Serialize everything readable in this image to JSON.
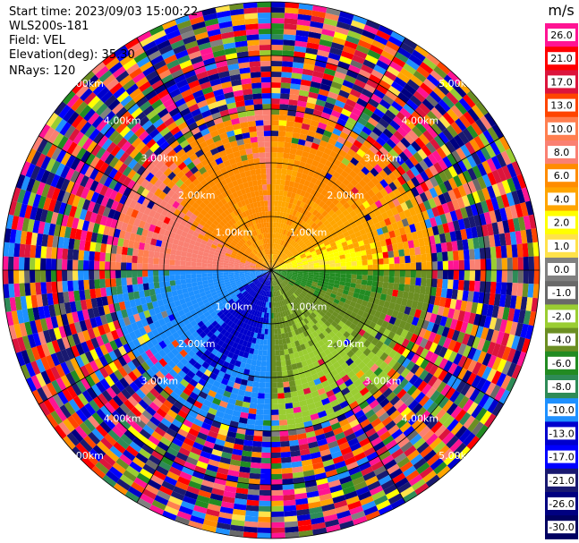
{
  "header": {
    "start_time": "Start time: 2023/09/03 15:00:22",
    "instrument": "WLS200s-181",
    "field": "Field: VEL",
    "elevation": "Elevation(deg): 35.30",
    "nrays": "NRays: 120"
  },
  "colorbar": {
    "unit": "m/s",
    "ticks": [
      "26.0",
      "21.0",
      "17.0",
      "13.0",
      "10.0",
      "8.0",
      "6.0",
      "4.0",
      "2.0",
      "1.0",
      "0.0",
      "-1.0",
      "-2.0",
      "-4.0",
      "-6.0",
      "-8.0",
      "-10.0",
      "-13.0",
      "-17.0",
      "-21.0",
      "-26.0",
      "-30.0"
    ],
    "colors": [
      "#ff1493",
      "#ff0000",
      "#dc143c",
      "#ff4500",
      "#ff7f50",
      "#fa8072",
      "#ff8c00",
      "#ffa500",
      "#ffff00",
      "#ffe24a",
      "#808080",
      "#696969",
      "#9acd32",
      "#6b8e23",
      "#228b22",
      "#2e8b57",
      "#1e90ff",
      "#0000cd",
      "#0000ff",
      "#191970",
      "#000080",
      "#000060"
    ]
  },
  "chart_data": {
    "type": "heatmap",
    "projection": "polar",
    "field": "VEL",
    "unit": "m/s",
    "nrays": 120,
    "elevation_deg": 35.3,
    "vmin": -30.0,
    "vmax": 26.0,
    "range_rings_km": [
      1,
      2,
      3,
      4,
      5
    ],
    "ring_labels": [
      "1.00km",
      "2.00km",
      "3.00km",
      "4.00km",
      "5.00km"
    ],
    "max_range_km": 6,
    "structure": {
      "near_field_max_km": 3.0,
      "noise_beyond_km": 3.0,
      "sectors": [
        {
          "az_from": 0,
          "az_to": 90,
          "velocity": 3.0,
          "desc": "positive, northeast"
        },
        {
          "az_from": 90,
          "az_to": 180,
          "velocity": -5.0,
          "desc": "negative, southeast"
        },
        {
          "az_from": 180,
          "az_to": 270,
          "velocity": -12.0,
          "desc": "negative, southwest"
        },
        {
          "az_from": 270,
          "az_to": 360,
          "velocity": 6.0,
          "desc": "positive, northwest"
        }
      ]
    }
  }
}
